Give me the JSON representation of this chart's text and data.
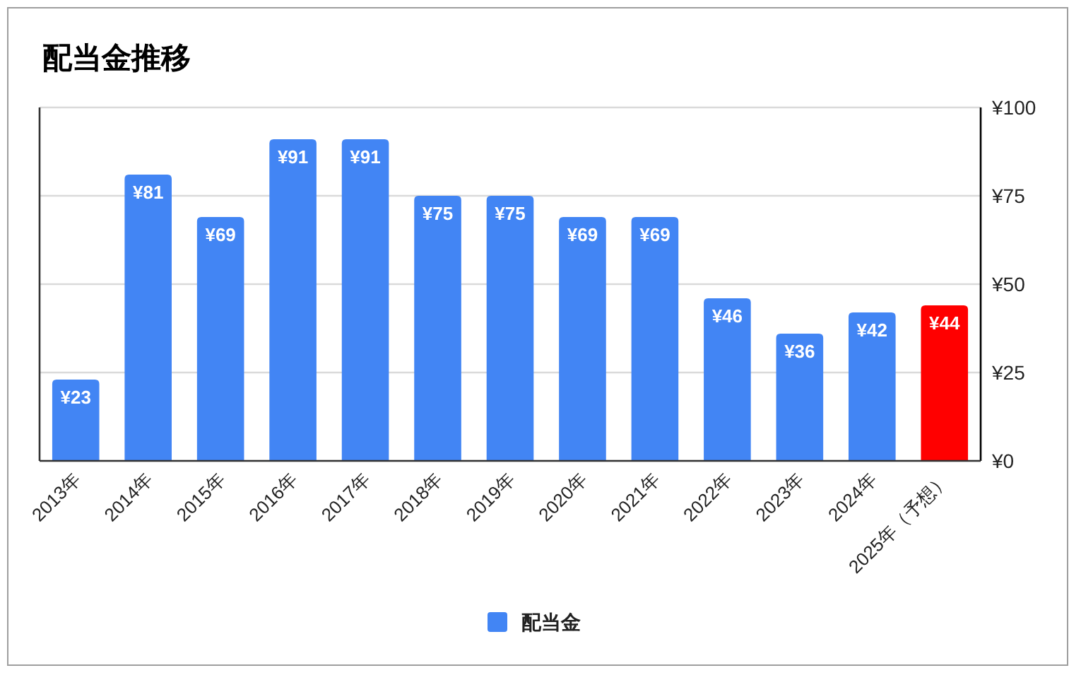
{
  "chart_data": {
    "type": "bar",
    "title": "配当金推移",
    "categories": [
      "2013年",
      "2014年",
      "2015年",
      "2016年",
      "2017年",
      "2018年",
      "2019年",
      "2020年",
      "2021年",
      "2022年",
      "2023年",
      "2024年",
      "2025年（予想）"
    ],
    "series": [
      {
        "name": "配当金",
        "color": "#4285f4",
        "values": [
          23,
          81,
          69,
          91,
          91,
          75,
          75,
          69,
          69,
          46,
          36,
          42,
          44
        ],
        "colors": [
          "#4285f4",
          "#4285f4",
          "#4285f4",
          "#4285f4",
          "#4285f4",
          "#4285f4",
          "#4285f4",
          "#4285f4",
          "#4285f4",
          "#4285f4",
          "#4285f4",
          "#4285f4",
          "#ff0000"
        ],
        "value_labels": [
          "¥23",
          "¥81",
          "¥69",
          "¥91",
          "¥91",
          "¥75",
          "¥75",
          "¥69",
          "¥69",
          "¥46",
          "¥36",
          "¥42",
          "¥44"
        ]
      }
    ],
    "ylim": [
      0,
      100
    ],
    "yticks": [
      {
        "value": 0,
        "label": "¥0"
      },
      {
        "value": 25,
        "label": "¥25"
      },
      {
        "value": 50,
        "label": "¥50"
      },
      {
        "value": 75,
        "label": "¥75"
      },
      {
        "value": 100,
        "label": "¥100"
      }
    ],
    "grid": "y",
    "legend": "bottom"
  }
}
